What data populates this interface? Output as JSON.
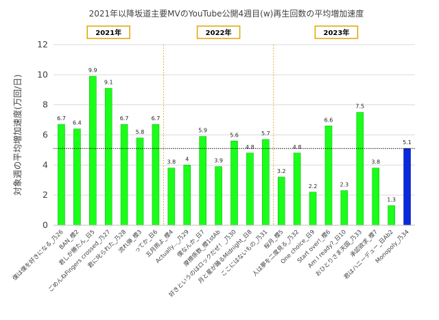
{
  "chart_data": {
    "type": "bar",
    "title": "2021年以降坂道主要MVのYouTube公開4週目(w)再生回数の平均増加速度",
    "ylabel": "対象週の平均増加速度(万回/日)",
    "ylim": [
      0,
      12
    ],
    "yticks": [
      0,
      2,
      4,
      6,
      8,
      10,
      12
    ],
    "average_line": 5.1,
    "year_groups": [
      {
        "label": "2021年",
        "start": 0,
        "end": 6
      },
      {
        "label": "2022年",
        "start": 7,
        "end": 13
      },
      {
        "label": "2023年",
        "start": 14,
        "end": 21
      }
    ],
    "categories": [
      "僕は僕を好きになる_乃26",
      "BAN_櫻2",
      "君しか勝たん_日5",
      "ごめんねFingers crossed_乃27",
      "君に叱られた_乃28",
      "流れ弾_櫻3",
      "ってか_日6",
      "五月雨よ_櫻4",
      "Actually..._乃29",
      "僕なんか_日7",
      "摩擦係数_櫻1stAb",
      "好きというのはロックだぜ！_乃30",
      "月と星が踊るMidnight_日8",
      "ここにはないもの_乃31",
      "桜月_櫻5",
      "人は夢を二度見る_乃32",
      "One choice_日9",
      "Start over!_櫻6",
      "Am I ready?_日10",
      "おひとりさま天国_乃33",
      "承認欲求_櫻7",
      "君はハニーデュー_日Ab2",
      "Monopoly_乃34"
    ],
    "values": [
      6.7,
      6.4,
      9.9,
      9.1,
      6.7,
      5.8,
      6.7,
      3.8,
      4,
      5.9,
      3.9,
      5.6,
      4.8,
      5.7,
      3.2,
      4.8,
      2.2,
      6.6,
      2.3,
      7.5,
      3.8,
      1.3,
      5.1
    ],
    "value_labels": [
      "6.7",
      "6.4",
      "9.9",
      "9.1",
      "6.7",
      "5.8",
      "6.7",
      "3.8",
      "4",
      "5.9",
      "3.9",
      "5.6",
      "4.8",
      "5.7",
      "3.2",
      "4.8",
      "2.2",
      "6.6",
      "2.3",
      "7.5",
      "3.8",
      "1.3",
      "5.1"
    ],
    "colors": {
      "bar": "#1aff1a",
      "bar_border": "#15b315",
      "highlight": "#0a2ad9",
      "highlight_index": 22,
      "year_box_border": "#e0a400",
      "year_divider": "#d4b43a",
      "grid": "#d9d9d9",
      "average_line": "#000000"
    },
    "grid": true
  }
}
